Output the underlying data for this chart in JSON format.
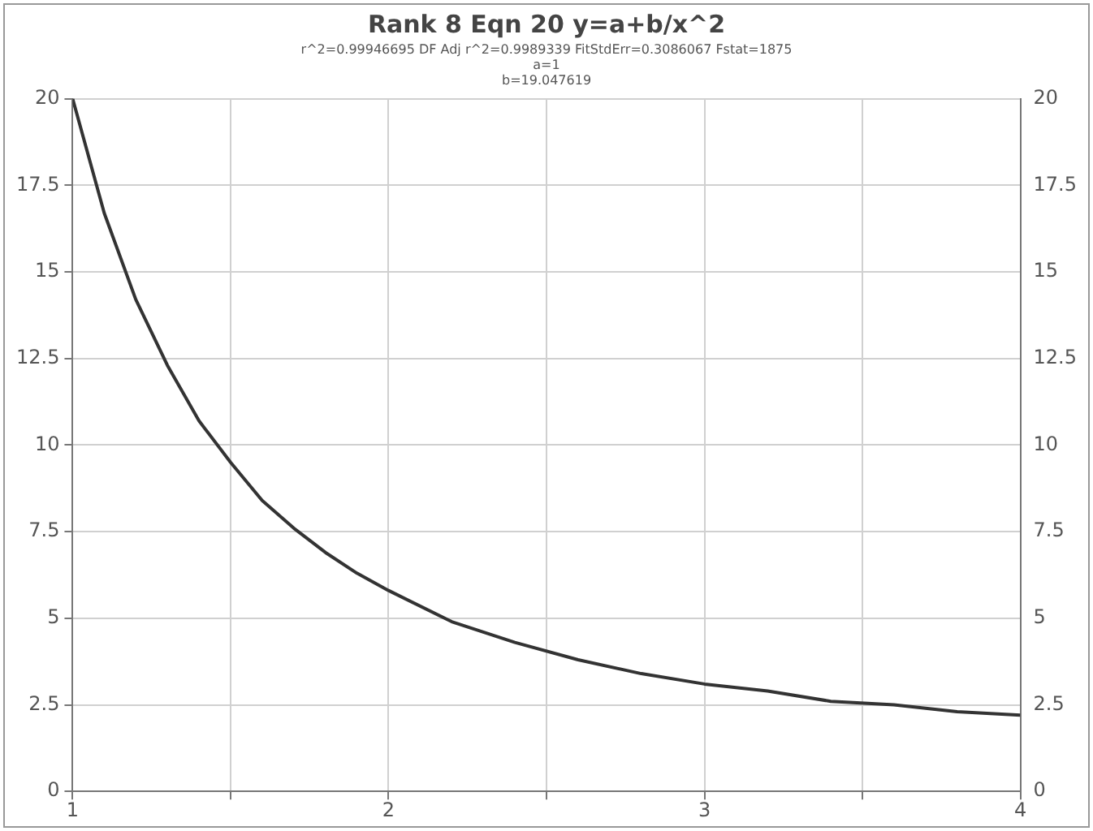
{
  "chart_data": {
    "type": "line",
    "title": "Rank 8 Eqn 20 y=a+b/x^2",
    "subtitle": "r^2=0.99946695 DF Adj r^2=0.9989339 FitStdErr=0.3086067 Fstat=1875",
    "annotations": [
      "a=1",
      "b=19.047619"
    ],
    "x": [
      1,
      1.1,
      1.2,
      1.3,
      1.4,
      1.5,
      1.6,
      1.7,
      1.8,
      1.9,
      2,
      2.2,
      2.4,
      2.6,
      2.8,
      3,
      3.2,
      3.4,
      3.6,
      3.8,
      4
    ],
    "series": [
      {
        "color": "#333333",
        "values": [
          20,
          16.7,
          14.2,
          12.3,
          10.7,
          9.5,
          8.4,
          7.6,
          6.9,
          6.3,
          5.8,
          4.9,
          4.3,
          3.8,
          3.4,
          3.1,
          2.9,
          2.6,
          2.5,
          2.3,
          2.2
        ]
      }
    ],
    "xlim": [
      1,
      4
    ],
    "xticks": [
      1,
      {
        "value": 1.5,
        "label": null
      },
      2,
      {
        "value": 2.5,
        "label": null
      },
      3,
      {
        "value": 3.5,
        "label": null
      },
      4
    ],
    "ylim": [
      0,
      20
    ],
    "yticks": [
      0,
      2.5,
      5,
      7.5,
      10,
      12.5,
      15,
      17.5,
      20
    ],
    "y2lim": [
      0,
      20
    ],
    "y2ticks": [
      0,
      2.5,
      5,
      7.5,
      10,
      12.5,
      15,
      17.5,
      20
    ],
    "grid": true,
    "legend": false,
    "marker": "none",
    "line_style": "solid"
  }
}
